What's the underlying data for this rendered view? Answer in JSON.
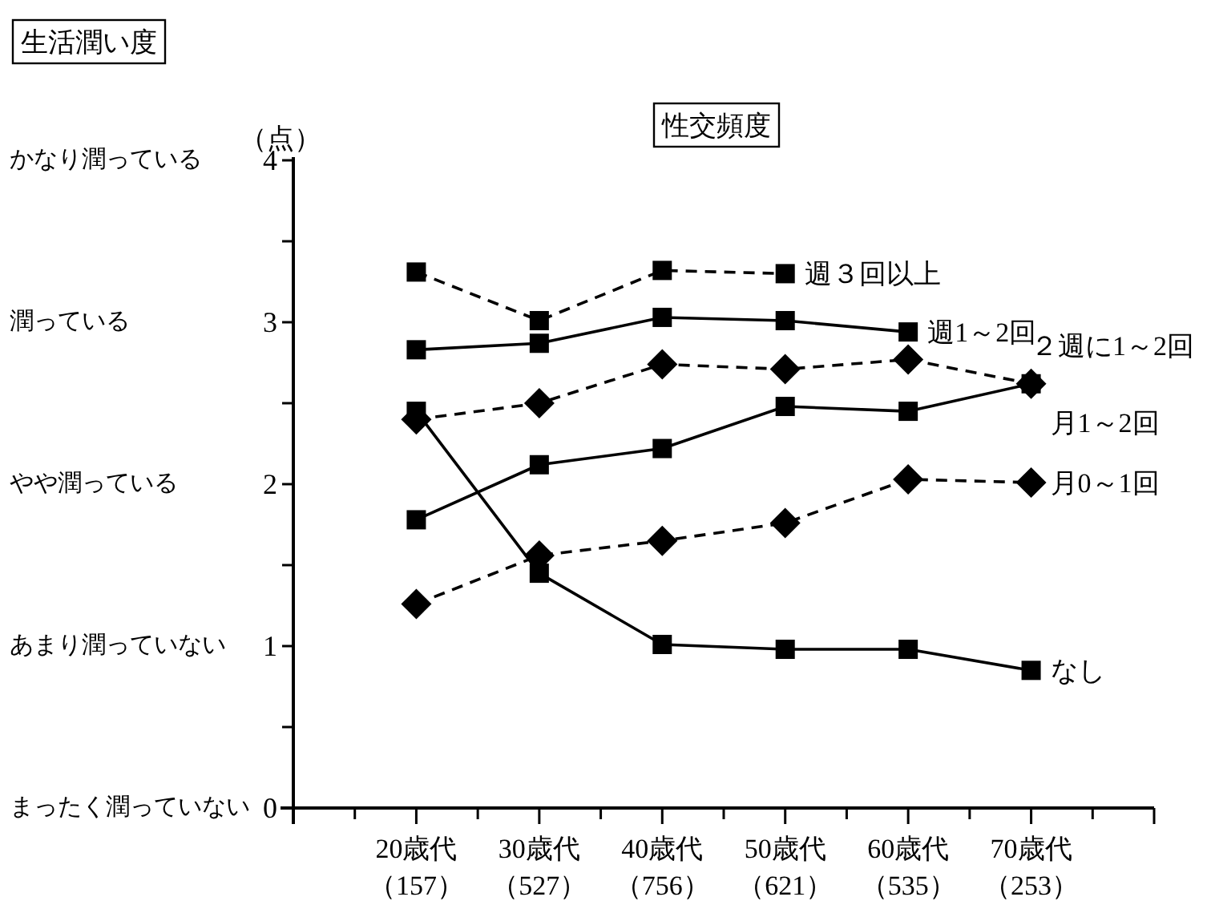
{
  "chart_data": {
    "type": "line",
    "title": "性交頻度",
    "categories": [
      "20歳代（157）",
      "30歳代（527）",
      "40歳代（756）",
      "50歳代（621）",
      "60歳代（535）",
      "70歳代（253）"
    ],
    "ylim": [
      0,
      4
    ],
    "yticks": [
      0,
      {
        "value": 0.5,
        "label": null
      },
      1,
      {
        "value": 1.5,
        "label": null
      },
      2,
      {
        "value": 2.5,
        "label": null
      },
      3,
      {
        "value": 3.5,
        "label": null
      },
      4
    ],
    "annotations": [
      "生活潤い度",
      "（点）",
      "かなり潤っている",
      "潤っている",
      "やや潤っている",
      "あまり潤っていない",
      "まったく潤っていない"
    ],
    "series": [
      {
        "name": "週３回以上",
        "color": "#000000",
        "line_style": "dashed",
        "marker": "square",
        "values": [
          3.31,
          3.01,
          3.32,
          3.3,
          null,
          null
        ]
      },
      {
        "name": "週1～2回",
        "color": "#000000",
        "line_style": "solid",
        "marker": "square",
        "values": [
          2.83,
          2.87,
          3.03,
          3.01,
          2.94,
          null
        ]
      },
      {
        "name": "２週に1～2回",
        "color": "#000000",
        "line_style": "dashed",
        "marker": "diamond",
        "values": [
          2.4,
          2.5,
          2.74,
          2.71,
          2.77,
          2.62
        ]
      },
      {
        "name": "月1～2回",
        "color": "#000000",
        "line_style": "solid",
        "marker": "square",
        "values": [
          1.78,
          2.12,
          2.22,
          2.48,
          2.45,
          2.62
        ]
      },
      {
        "name": "月0～1回",
        "color": "#000000",
        "line_style": "dashed",
        "marker": "diamond",
        "values": [
          1.26,
          1.56,
          1.65,
          1.76,
          2.03,
          2.01
        ]
      },
      {
        "name": "なし",
        "color": "#000000",
        "line_style": "solid",
        "marker": "square",
        "values": [
          2.45,
          1.45,
          1.01,
          0.98,
          0.98,
          0.85
        ]
      }
    ]
  }
}
